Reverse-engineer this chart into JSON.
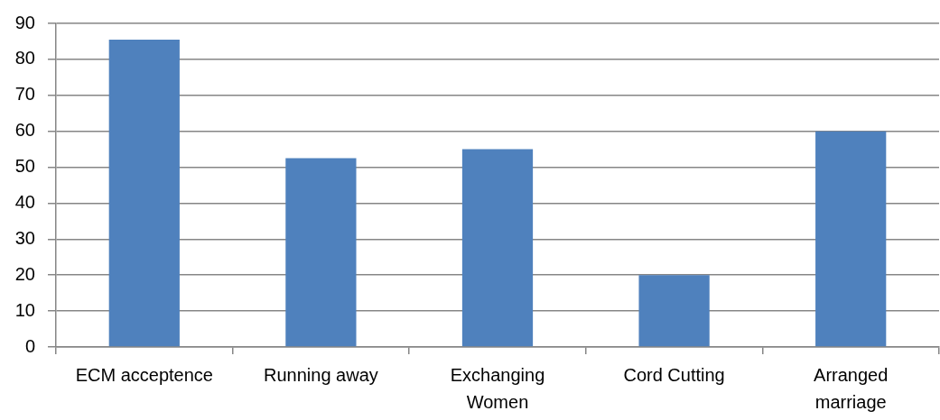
{
  "chart_data": {
    "type": "bar",
    "categories": [
      "ECM acceptence",
      "Running away",
      "Exchanging Women",
      "Cord Cutting",
      "Arranged marriage"
    ],
    "values": [
      85.5,
      52.5,
      55,
      20,
      60
    ],
    "color": "#4f81bd",
    "ylim": [
      0,
      90
    ],
    "yticks": [
      0,
      10,
      20,
      30,
      40,
      50,
      60,
      70,
      80,
      90
    ],
    "grid": "y"
  }
}
